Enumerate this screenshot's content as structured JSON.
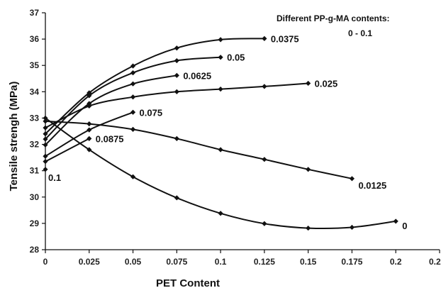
{
  "chart_data": {
    "type": "line",
    "title": "",
    "xlabel": "PET Content",
    "ylabel": "Tensile strengh (MPa)",
    "xlim": [
      0,
      0.225
    ],
    "ylim": [
      28,
      37
    ],
    "xticks": [
      "0",
      "0.025",
      "0.05",
      "0.075",
      "0.1",
      "0.125",
      "0.15",
      "0.175",
      "0.2",
      "0.225"
    ],
    "xtick_values": [
      0,
      0.025,
      0.05,
      0.075,
      0.1,
      0.125,
      0.15,
      0.175,
      0.2,
      0.225
    ],
    "yticks": [
      "28",
      "29",
      "30",
      "31",
      "32",
      "33",
      "34",
      "35",
      "36",
      "37"
    ],
    "ytick_values": [
      28,
      29,
      30,
      31,
      32,
      33,
      34,
      35,
      36,
      37
    ],
    "grid": false,
    "legend": "none",
    "annotations": [
      "Different PP-g-MA contents:",
      "0 - 0.1"
    ],
    "series": [
      {
        "name": "0",
        "x": [
          0,
          0.025,
          0.05,
          0.075,
          0.1,
          0.125,
          0.15,
          0.175,
          0.2
        ],
        "y": [
          33.0,
          31.8,
          30.77,
          29.97,
          29.38,
          28.99,
          28.82,
          28.85,
          29.08
        ]
      },
      {
        "name": "0.0125",
        "x": [
          0,
          0.025,
          0.05,
          0.075,
          0.1,
          0.125,
          0.15,
          0.175
        ],
        "y": [
          32.88,
          32.78,
          32.57,
          32.22,
          31.8,
          31.43,
          31.05,
          30.7
        ]
      },
      {
        "name": "0.025",
        "x": [
          0,
          0.025,
          0.05,
          0.075,
          0.1,
          0.125,
          0.15
        ],
        "y": [
          32.63,
          33.46,
          33.8,
          34.0,
          34.1,
          34.2,
          34.32
        ]
      },
      {
        "name": "0.0375",
        "x": [
          0,
          0.025,
          0.05,
          0.075,
          0.1,
          0.125
        ],
        "y": [
          32.4,
          33.96,
          34.98,
          35.66,
          35.98,
          36.02
        ]
      },
      {
        "name": "0.05",
        "x": [
          0,
          0.025,
          0.05,
          0.075,
          0.1
        ],
        "y": [
          32.2,
          33.85,
          34.72,
          35.18,
          35.31
        ]
      },
      {
        "name": "0.0625",
        "x": [
          0,
          0.025,
          0.05,
          0.075
        ],
        "y": [
          31.98,
          33.55,
          34.3,
          34.62
        ]
      },
      {
        "name": "0.075",
        "x": [
          0,
          0.025,
          0.05
        ],
        "y": [
          31.55,
          32.55,
          33.22
        ]
      },
      {
        "name": "0.0875",
        "x": [
          0,
          0.025
        ],
        "y": [
          31.35,
          32.22
        ]
      },
      {
        "name": "0.1",
        "x": [
          0
        ],
        "y": [
          31.05
        ]
      }
    ]
  }
}
